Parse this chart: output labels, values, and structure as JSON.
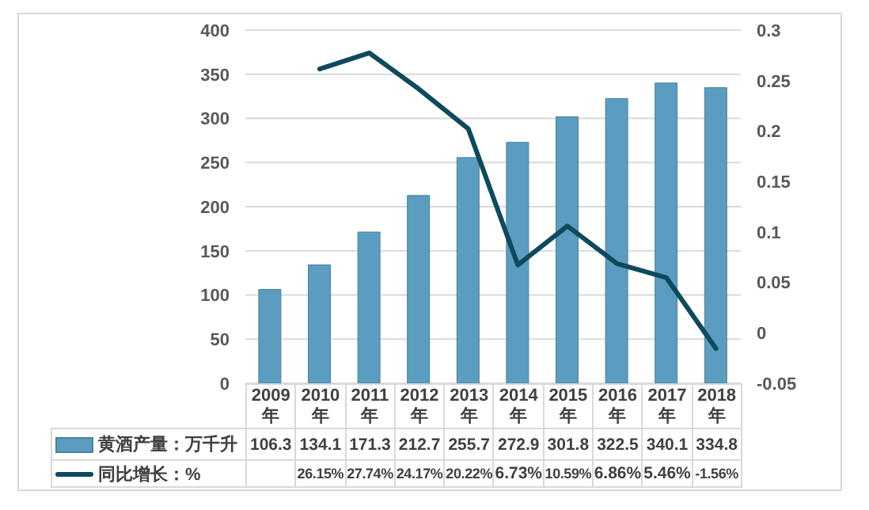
{
  "chart_data": {
    "type": "bar",
    "categories": [
      "2009年",
      "2010年",
      "2011年",
      "2012年",
      "2013年",
      "2014年",
      "2015年",
      "2016年",
      "2017年",
      "2018年"
    ],
    "series": [
      {
        "name": "黄酒产量：万千升",
        "color": "#5b9dc0",
        "values": [
          106.3,
          134.1,
          171.3,
          212.7,
          255.7,
          272.9,
          301.8,
          322.5,
          340.1,
          334.8
        ],
        "value_labels": [
          "106.3",
          "134.1",
          "171.3",
          "212.7",
          "255.7",
          "272.9",
          "301.8",
          "322.5",
          "340.1",
          "334.8"
        ]
      },
      {
        "name": "同比增长：%",
        "type": "line",
        "axis": "y2",
        "color": "#0e4a5e",
        "values": [
          null,
          0.2615,
          0.2774,
          0.2417,
          0.2022,
          0.0673,
          0.1059,
          0.0686,
          0.0546,
          -0.0156
        ],
        "value_labels": [
          null,
          "26.15%",
          "27.74%",
          "24.17%",
          "20.22%",
          "6.73%",
          "10.59%",
          "6.86%",
          "5.46%",
          "-1.56%"
        ]
      }
    ],
    "ylim": [
      0,
      400
    ],
    "yticks": [
      0,
      50,
      100,
      150,
      200,
      250,
      300,
      350,
      400
    ],
    "y2lim": [
      -0.05,
      0.3
    ],
    "y2ticks": [
      -0.05,
      0,
      0.05,
      0.1,
      0.15,
      0.2,
      0.25,
      0.3
    ],
    "grid": "y",
    "legend": "bottom",
    "marker": "none",
    "line_style": "solid"
  }
}
